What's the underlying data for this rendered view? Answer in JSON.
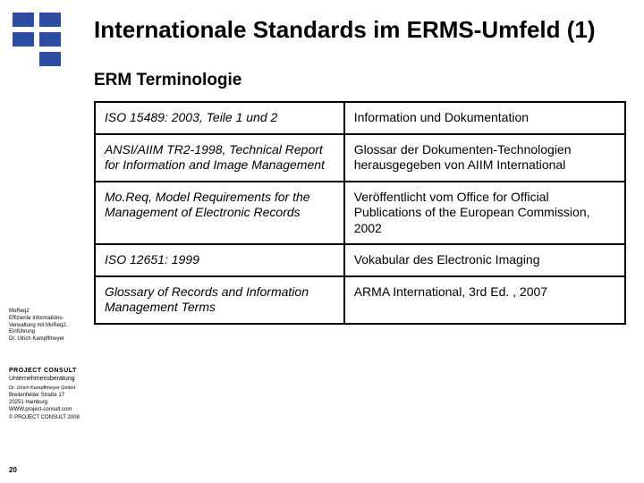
{
  "title": "Internationale Standards im ERMS-Umfeld (1)",
  "subtitle": "ERM Terminologie",
  "table": {
    "rows": [
      {
        "c0": "ISO 15489: 2003, Teile 1 und 2",
        "c1": "Information und Dokumentation"
      },
      {
        "c0": "ANSI/AIIM TR2-1998, Technical Report for Information and Image Management",
        "c1": "Glossar der Dokumenten-Technologien herausgegeben von AIIM International"
      },
      {
        "c0": "Mo.Req, Model Requirements for the Management of Electronic Records",
        "c1": "Veröffentlicht vom Office for Official Publications of the European Commission, 2002"
      },
      {
        "c0": "ISO 12651: 1999",
        "c1": "Vokabular des Electronic Imaging"
      },
      {
        "c0": "Glossary of Records and Information Management Terms",
        "c1": "ARMA International, 3rd Ed. , 2007"
      }
    ]
  },
  "sidebar_top": {
    "l0": "MoReq2",
    "l1": "Effiziente Informations-",
    "l2": "Verwaltung mit MoReq2.",
    "l3": "Einführung",
    "l4": "Dr. Ulrich Kampffmeyer"
  },
  "sidebar_bottom": {
    "l0": "PROJECT   CONSULT",
    "l1": "Unternehmensberatung",
    "l2": "Dr. Ulrich Kampffmeyer GmbH",
    "l3": "Breitenfelder Straße 17",
    "l4": "20251 Hamburg",
    "l5": "WWW.project-consult.com",
    "l6": "© PROJECT CONSULT 2008"
  },
  "page_number": "20",
  "colors": {
    "logo": "#2b4ea0",
    "text": "#000000",
    "table_border": "#000000",
    "background": "#ffffff"
  },
  "typography": {
    "title_fontsize": 26,
    "subtitle_fontsize": 19,
    "table_fontsize": 14,
    "sidebar_fontsize": 6
  }
}
